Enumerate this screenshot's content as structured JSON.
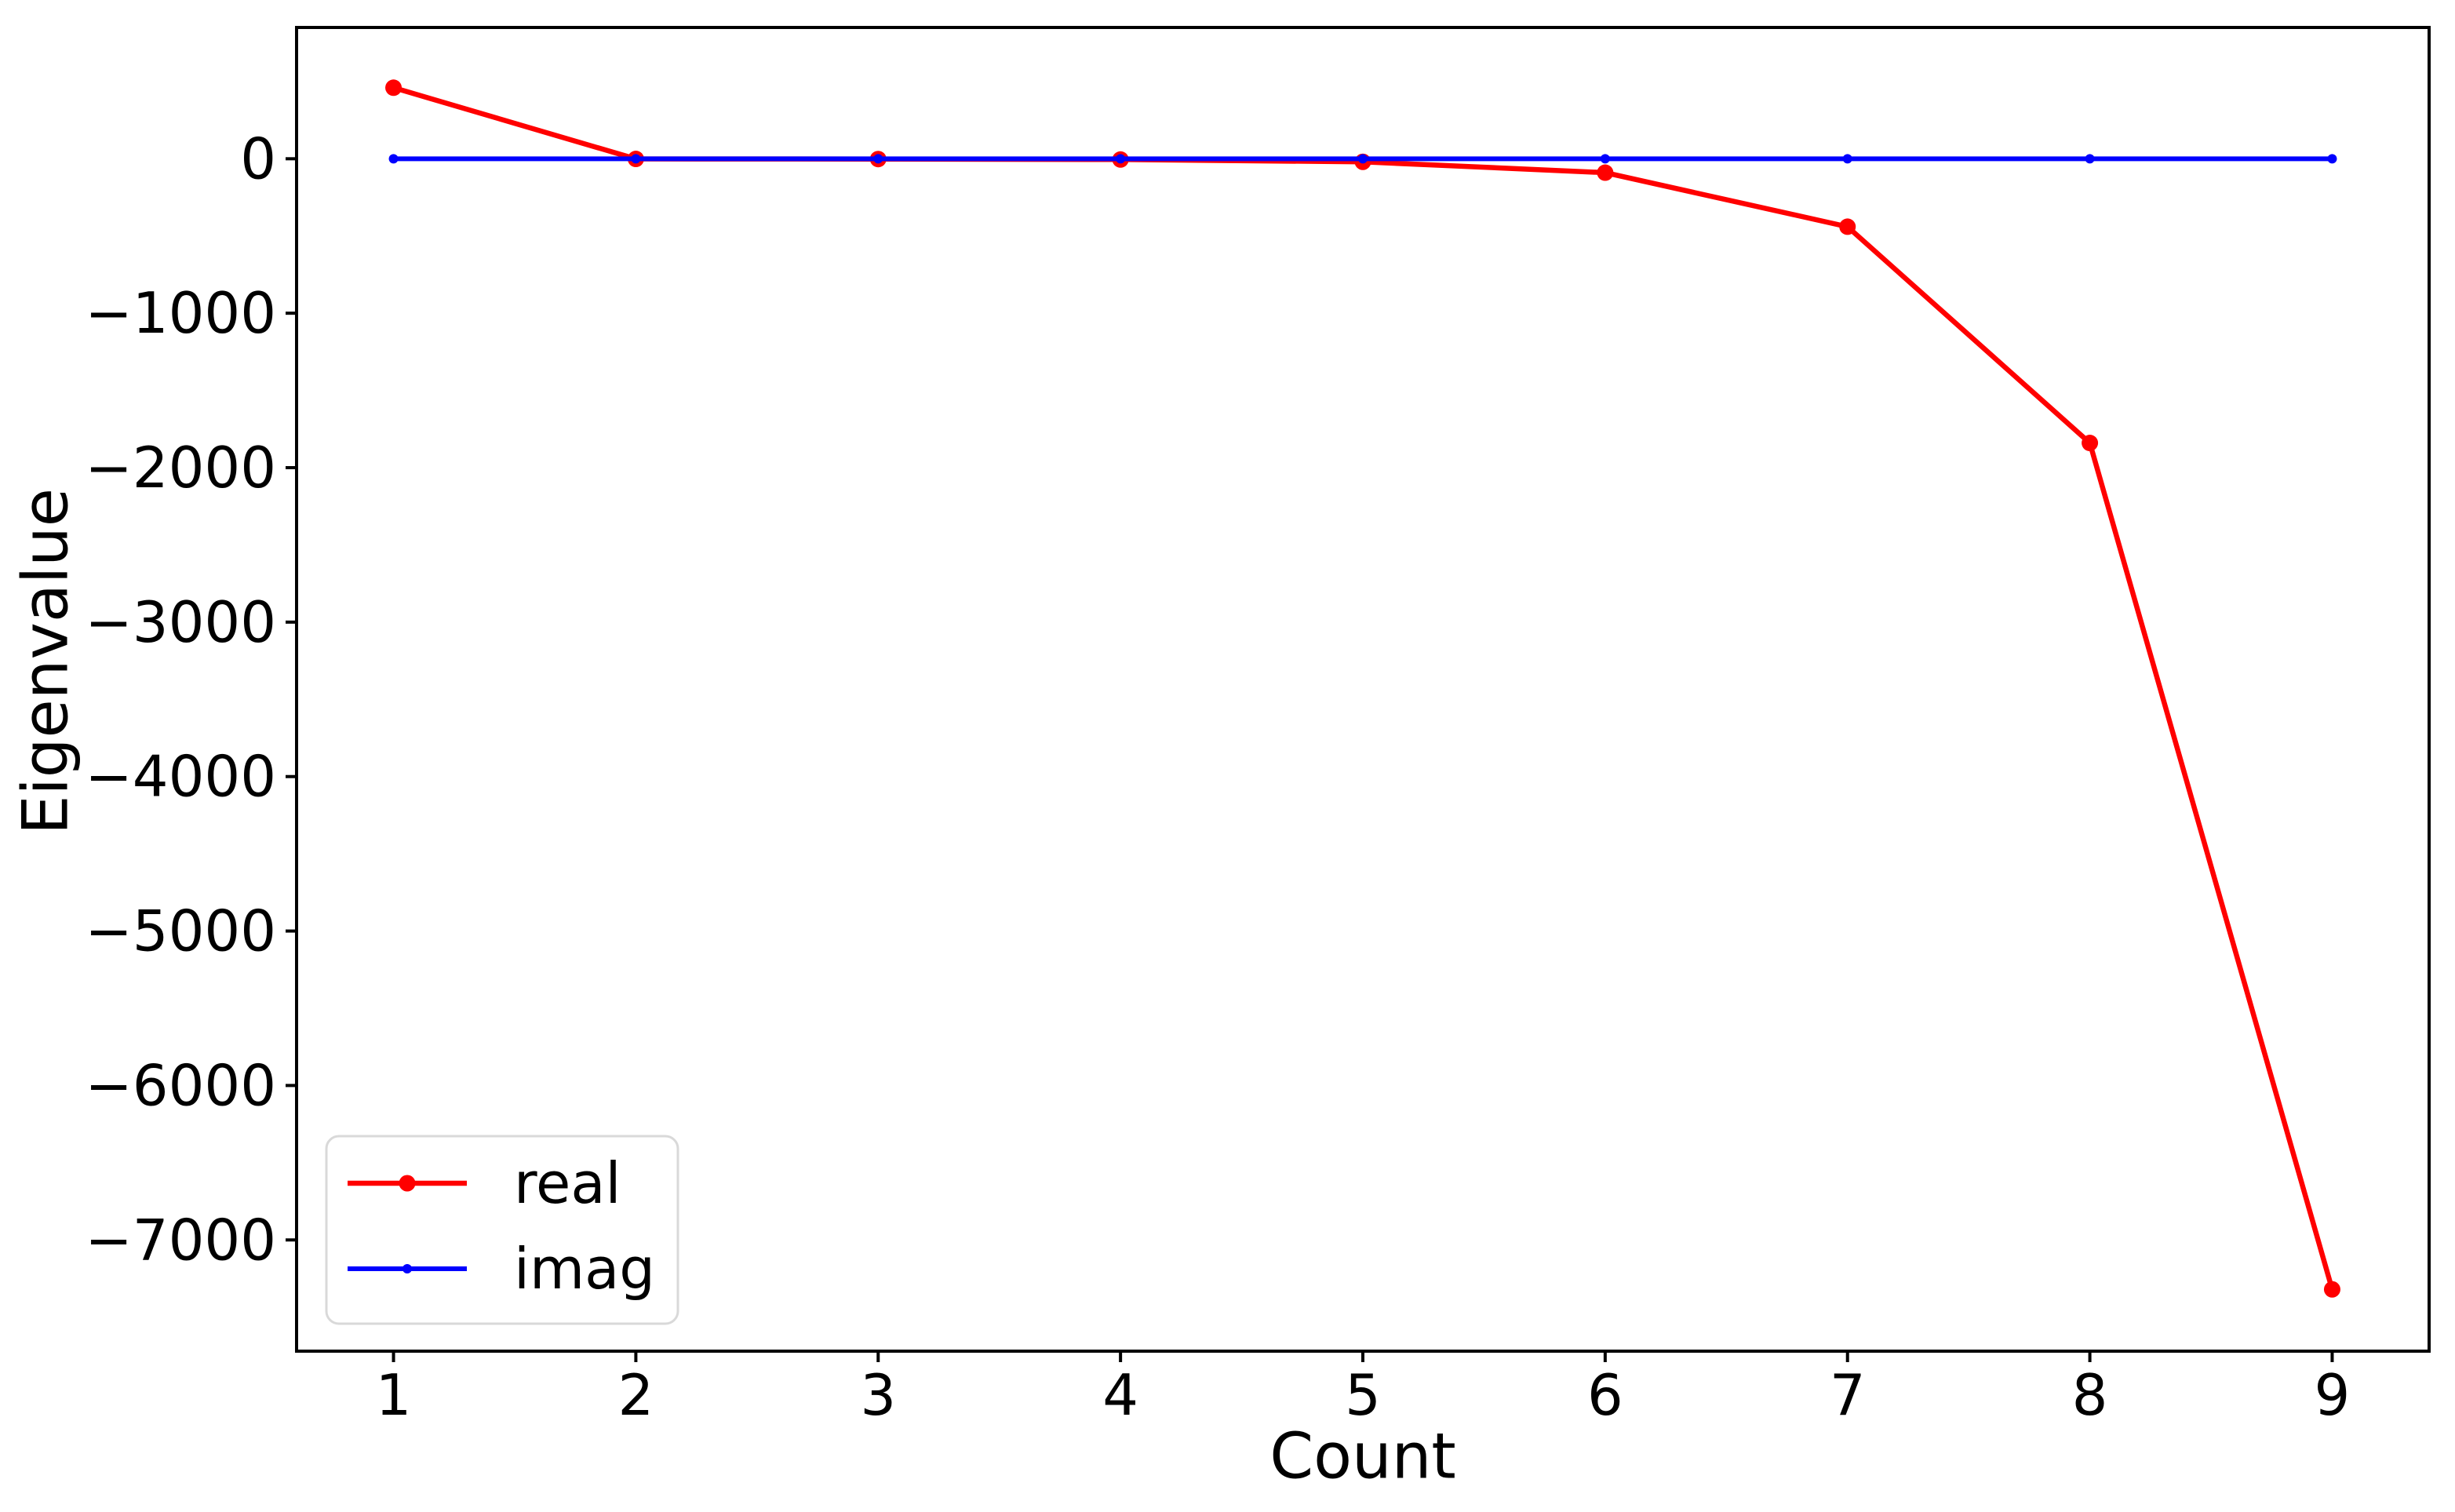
{
  "figure": {
    "background": "#ffffff"
  },
  "chart_data": {
    "type": "line",
    "title": "",
    "xlabel": "Count",
    "ylabel": "Eigenvalue",
    "x": [
      1,
      2,
      3,
      4,
      5,
      6,
      7,
      8,
      9
    ],
    "series": [
      {
        "name": "real",
        "color": "#ff0000",
        "values": [
          460,
          -1,
          -2,
          -5,
          -20,
          -90,
          -440,
          -1840,
          -7320
        ],
        "line_width": 6.5,
        "marker": "circle",
        "marker_radius": 10.5
      },
      {
        "name": "imag",
        "color": "#0000ff",
        "values": [
          0,
          0,
          0,
          0,
          0,
          0,
          0,
          0,
          0
        ],
        "line_width": 6,
        "marker": "circle",
        "marker_radius": 6
      }
    ],
    "xlim": [
      0.6,
      9.4
    ],
    "ylim": [
      -7720,
      850
    ],
    "xticks": [
      1,
      2,
      3,
      4,
      5,
      6,
      7,
      8,
      9
    ],
    "xtick_labels": [
      "1",
      "2",
      "3",
      "4",
      "5",
      "6",
      "7",
      "8",
      "9"
    ],
    "yticks": [
      0,
      -1000,
      -2000,
      -3000,
      -4000,
      -5000,
      -6000,
      -7000
    ],
    "ytick_labels": [
      "0",
      "−1000",
      "−2000",
      "−3000",
      "−4000",
      "−5000",
      "−6000",
      "−7000"
    ],
    "grid": false,
    "axis_color": "#000000",
    "legend": {
      "position": "lower left",
      "entries": [
        "real",
        "imag"
      ],
      "border_color": "#d9d9d9",
      "background": "#ffffff"
    }
  }
}
